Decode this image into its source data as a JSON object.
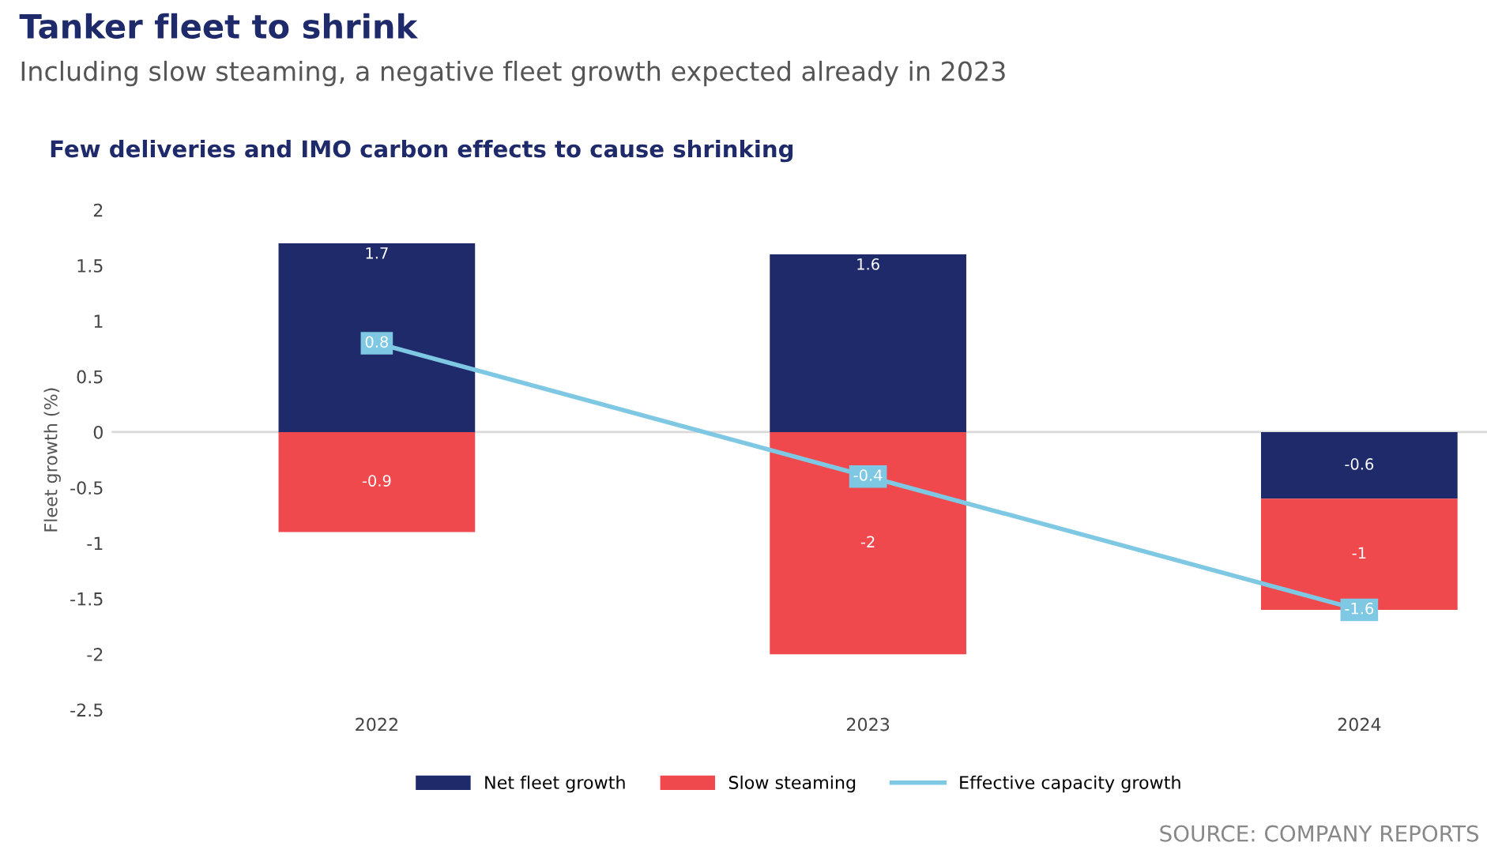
{
  "chart_data": {
    "type": "bar",
    "stacked": true,
    "title": "Tanker fleet to shrink",
    "subtitle": "Including slow steaming, a negative fleet growth expected already in 2023",
    "ylabel": "Fleet growth (%)",
    "categories": [
      "2022",
      "2023",
      "2024"
    ],
    "series": [
      {
        "name": "Net fleet growth",
        "color": "#1f2a6b",
        "values": [
          1.7,
          1.6,
          -0.6
        ]
      },
      {
        "name": "Slow steaming",
        "color": "#f0494d",
        "values": [
          -0.9,
          -2,
          -1
        ]
      },
      {
        "name": "Effective capacity growth",
        "type": "line",
        "color": "#7ec8e3",
        "values": [
          0.8,
          -0.4,
          -1.6
        ]
      }
    ],
    "ylim": [
      -2.5,
      2
    ],
    "yticks": [
      -2.5,
      -2,
      -1.5,
      -1,
      -0.5,
      0,
      0.5,
      1,
      1.5,
      2
    ],
    "ref_lines": [
      {
        "axis": "y",
        "value": 0,
        "color": "#d9d9d9"
      }
    ],
    "legend": "bottom",
    "data_labels": true,
    "marker": "square",
    "line_style": "solid",
    "annotations": [
      "Few deliveries and IMO carbon effects to cause shrinking",
      "SOURCE: COMPANY REPORTS"
    ]
  }
}
